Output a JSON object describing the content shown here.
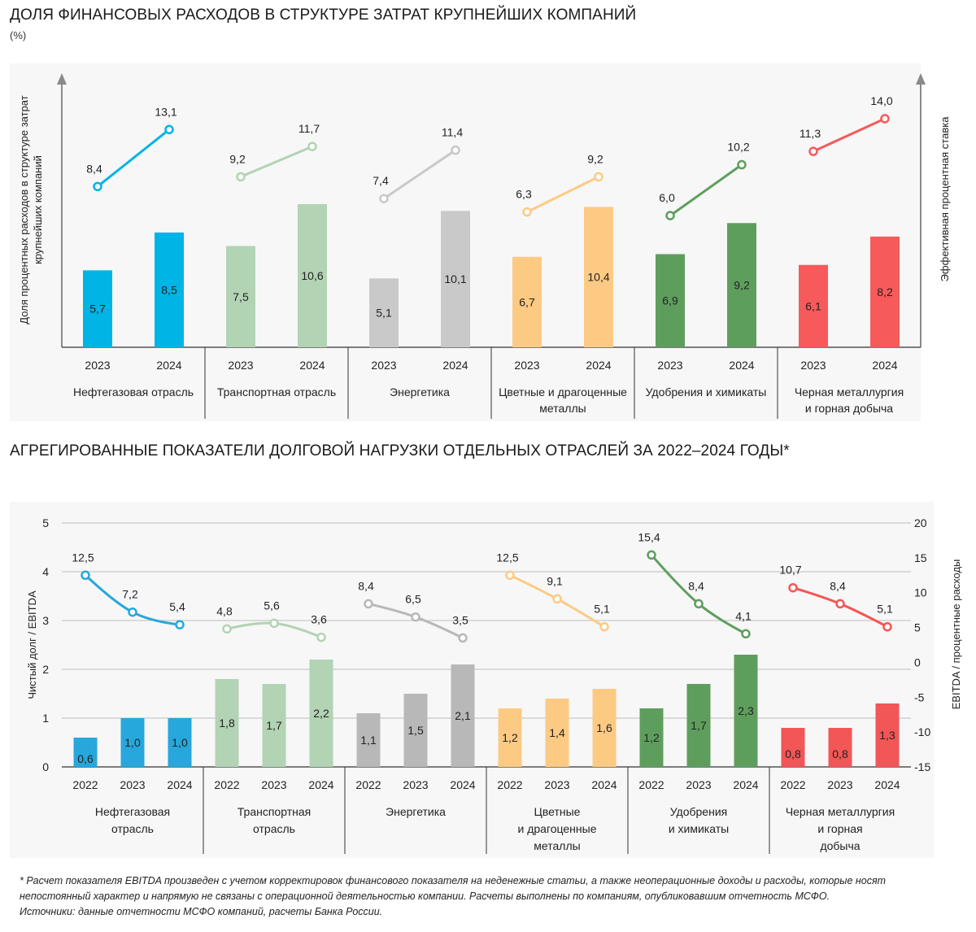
{
  "chart_data": [
    {
      "type": "bar",
      "title": "Доля финансовых расходов в структуре затрат крупнейших компаний",
      "unit": "(%)",
      "ylabel_left": "Доля процентных расходов в структуре затрат крупнейших компаний",
      "ylabel_right": "Эффективная процентная ставка",
      "groups": [
        {
          "name": "Нефтегазовая отрасль",
          "color": "#00b4e6",
          "years": [
            "2023",
            "2024"
          ],
          "bars": [
            5.7,
            8.5
          ],
          "bar_labels": [
            "5,7",
            "8,5"
          ],
          "line": [
            8.4,
            13.1
          ],
          "line_labels": [
            "8,4",
            "13,1"
          ]
        },
        {
          "name": "Транспортная отрасль",
          "color": "#b2d3b4",
          "years": [
            "2023",
            "2024"
          ],
          "bars": [
            7.5,
            10.6
          ],
          "bar_labels": [
            "7,5",
            "10,6"
          ],
          "line": [
            9.2,
            11.7
          ],
          "line_labels": [
            "9,2",
            "11,7"
          ]
        },
        {
          "name": "Энергетика",
          "color": "#c9c9c9",
          "years": [
            "2023",
            "2024"
          ],
          "bars": [
            5.1,
            10.1
          ],
          "bar_labels": [
            "5,1",
            "10,1"
          ],
          "line": [
            7.4,
            11.4
          ],
          "line_labels": [
            "7,4",
            "11,4"
          ]
        },
        {
          "name": "Цветные и драгоценные металлы",
          "color": "#fdca84",
          "years": [
            "2023",
            "2024"
          ],
          "bars": [
            6.7,
            10.4
          ],
          "bar_labels": [
            "6,7",
            "10,4"
          ],
          "line": [
            6.3,
            9.2
          ],
          "line_labels": [
            "6,3",
            "9,2"
          ]
        },
        {
          "name": "Удобрения и химикаты",
          "color": "#5e9e5d",
          "years": [
            "2023",
            "2024"
          ],
          "bars": [
            6.9,
            9.2
          ],
          "bar_labels": [
            "6,9",
            "9,2"
          ],
          "line": [
            6.0,
            10.2
          ],
          "line_labels": [
            "6,0",
            "10,2"
          ]
        },
        {
          "name": "Черная металлургия и горная добыча",
          "color": "#f65a5a",
          "years": [
            "2023",
            "2024"
          ],
          "bars": [
            6.1,
            8.2
          ],
          "bar_labels": [
            "6,1",
            "8,2"
          ],
          "line": [
            11.3,
            14.0
          ],
          "line_labels": [
            "11,3",
            "14,0"
          ]
        }
      ]
    },
    {
      "type": "bar",
      "title": "Агрегированные показатели долговой нагрузки отдельных отраслей за 2022–2024 годы*",
      "ylabel_left": "Чистый долг / EBITDA",
      "ylabel_right": "EBITDA / процентные расходы",
      "ylim_left": [
        0,
        5
      ],
      "ylim_right": [
        -15,
        20
      ],
      "yticks_left": [
        "0",
        "1",
        "2",
        "3",
        "4",
        "5"
      ],
      "yticks_right": [
        "-15",
        "-10",
        "-5",
        "0",
        "5",
        "10",
        "15",
        "20"
      ],
      "groups": [
        {
          "name": "Нефтегазовая отрасль",
          "color": "#27a7dc",
          "years": [
            "2022",
            "2023",
            "2024"
          ],
          "bars": [
            0.6,
            1.0,
            1.0
          ],
          "bar_labels": [
            "0,6",
            "1,0",
            "1,0"
          ],
          "line": [
            12.5,
            7.2,
            5.4
          ],
          "line_labels": [
            "12,5",
            "7,2",
            "5,4"
          ]
        },
        {
          "name": "Транспортная отрасль",
          "color": "#b2d3b4",
          "years": [
            "2022",
            "2023",
            "2024"
          ],
          "bars": [
            1.8,
            1.7,
            2.2
          ],
          "bar_labels": [
            "1,8",
            "1,7",
            "2,2"
          ],
          "line": [
            4.8,
            5.6,
            3.6
          ],
          "line_labels": [
            "4,8",
            "5,6",
            "3,6"
          ]
        },
        {
          "name": "Энергетика",
          "color": "#b8b8b8",
          "years": [
            "2022",
            "2023",
            "2024"
          ],
          "bars": [
            1.1,
            1.5,
            2.1
          ],
          "bar_labels": [
            "1,1",
            "1,5",
            "2,1"
          ],
          "line": [
            8.4,
            6.5,
            3.5
          ],
          "line_labels": [
            "8,4",
            "6,5",
            "3,5"
          ]
        },
        {
          "name": "Цветные и драгоценные металлы",
          "color": "#fdca84",
          "years": [
            "2022",
            "2023",
            "2024"
          ],
          "bars": [
            1.2,
            1.4,
            1.6
          ],
          "bar_labels": [
            "1,2",
            "1,4",
            "1,6"
          ],
          "line": [
            12.5,
            9.1,
            5.1
          ],
          "line_labels": [
            "12,5",
            "9,1",
            "5,1"
          ]
        },
        {
          "name": "Удобрения и химикаты",
          "color": "#5e9e5d",
          "years": [
            "2022",
            "2023",
            "2024"
          ],
          "bars": [
            1.2,
            1.7,
            2.3
          ],
          "bar_labels": [
            "1,2",
            "1,7",
            "2,3"
          ],
          "line": [
            15.4,
            8.4,
            4.1
          ],
          "line_labels": [
            "15,4",
            "8,4",
            "4,1"
          ]
        },
        {
          "name": "Черная металлургия и горная добыча",
          "color": "#f25656",
          "years": [
            "2022",
            "2023",
            "2024"
          ],
          "bars": [
            0.8,
            0.8,
            1.3
          ],
          "bar_labels": [
            "0,8",
            "0,8",
            "1,3"
          ],
          "line": [
            10.7,
            8.4,
            5.1
          ],
          "line_labels": [
            "10,7",
            "8,4",
            "5,1"
          ]
        }
      ]
    }
  ],
  "category_labels_top": [
    [
      "Нефтегазовая отрасль"
    ],
    [
      "Транспортная отрасль"
    ],
    [
      "Энергетика"
    ],
    [
      "Цветные и драгоценные",
      "металлы"
    ],
    [
      "Удобрения и химикаты"
    ],
    [
      "Черная металлургия",
      "и горная добыча"
    ]
  ],
  "category_labels_bottom": [
    [
      "Нефтегазовая",
      "отрасль"
    ],
    [
      "Транспортная",
      "отрасль"
    ],
    [
      "Энергетика"
    ],
    [
      "Цветные",
      "и драгоценные",
      "металлы"
    ],
    [
      "Удобрения",
      "и химикаты"
    ],
    [
      "Черная металлургия",
      "и горная",
      "добыча"
    ]
  ],
  "footnote": {
    "line1": "* Расчет показателя EBITDA произведен с учетом корректировок финансового показателя на неденежные статьи, а также неоперационные доходы и расходы, которые носят",
    "line2": "непостоянный характер и напрямую не связаны с операционной деятельностью компании. Расчеты выполнены по компаниям, опубликовавшим отчетность МСФО.",
    "line3": "Источники: данные отчетности МСФО компаний, расчеты Банка России."
  }
}
